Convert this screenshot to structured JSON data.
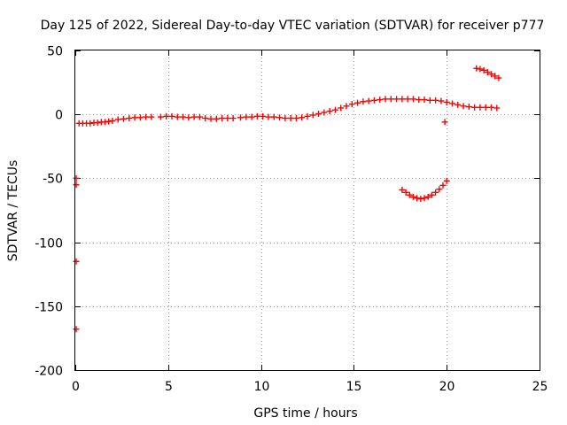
{
  "chart_data": {
    "type": "scatter",
    "title": "Day 125 of 2022, Sidereal Day-to-day VTEC variation (SDTVAR) for receiver p777",
    "xlabel": "GPS time / hours",
    "ylabel": "SDTVAR / TECUs",
    "xlim": [
      0,
      25
    ],
    "ylim": [
      -200,
      50
    ],
    "xticks": [
      0,
      5,
      10,
      15,
      20,
      25
    ],
    "yticks": [
      -200,
      -150,
      -100,
      -50,
      0,
      50
    ],
    "grid": true,
    "marker": "plus",
    "series": [
      {
        "name": "SDTVAR",
        "color": "#ff0000",
        "points": [
          [
            0.05,
            -50
          ],
          [
            0.05,
            -55
          ],
          [
            0.05,
            -115
          ],
          [
            0.05,
            -168
          ],
          [
            0.2,
            -7
          ],
          [
            0.4,
            -7
          ],
          [
            0.6,
            -7
          ],
          [
            0.8,
            -7
          ],
          [
            1.0,
            -6.5
          ],
          [
            1.2,
            -6.5
          ],
          [
            1.4,
            -6
          ],
          [
            1.6,
            -6
          ],
          [
            1.8,
            -5.5
          ],
          [
            2.0,
            -5
          ],
          [
            2.3,
            -4
          ],
          [
            2.6,
            -3.5
          ],
          [
            2.9,
            -3
          ],
          [
            3.2,
            -2.5
          ],
          [
            3.5,
            -2.5
          ],
          [
            3.8,
            -2
          ],
          [
            4.1,
            -2
          ],
          [
            4.6,
            -2
          ],
          [
            4.9,
            -1.5
          ],
          [
            5.2,
            -1.5
          ],
          [
            5.5,
            -2
          ],
          [
            5.8,
            -2
          ],
          [
            6.1,
            -2.5
          ],
          [
            6.4,
            -2
          ],
          [
            6.7,
            -2
          ],
          [
            7.0,
            -3
          ],
          [
            7.3,
            -3.5
          ],
          [
            7.6,
            -3.5
          ],
          [
            7.9,
            -3
          ],
          [
            8.2,
            -3
          ],
          [
            8.5,
            -3
          ],
          [
            8.9,
            -2.5
          ],
          [
            9.2,
            -2
          ],
          [
            9.5,
            -2
          ],
          [
            9.8,
            -1.5
          ],
          [
            10.1,
            -1.5
          ],
          [
            10.4,
            -2
          ],
          [
            10.7,
            -2
          ],
          [
            11.0,
            -2.5
          ],
          [
            11.3,
            -3
          ],
          [
            11.6,
            -3
          ],
          [
            11.9,
            -3
          ],
          [
            12.2,
            -2.5
          ],
          [
            12.5,
            -1.5
          ],
          [
            12.8,
            -0.5
          ],
          [
            13.1,
            0.5
          ],
          [
            13.4,
            1.5
          ],
          [
            13.7,
            2.5
          ],
          [
            14.0,
            3.5
          ],
          [
            14.3,
            5
          ],
          [
            14.6,
            6.5
          ],
          [
            14.9,
            8
          ],
          [
            15.2,
            9
          ],
          [
            15.5,
            10
          ],
          [
            15.8,
            10.5
          ],
          [
            16.1,
            11
          ],
          [
            16.4,
            11.5
          ],
          [
            16.7,
            12
          ],
          [
            17.0,
            12
          ],
          [
            17.3,
            12
          ],
          [
            17.6,
            12
          ],
          [
            17.9,
            12
          ],
          [
            18.2,
            12
          ],
          [
            18.5,
            11.5
          ],
          [
            18.8,
            11.5
          ],
          [
            19.1,
            11
          ],
          [
            19.4,
            11
          ],
          [
            19.7,
            10.5
          ],
          [
            20.0,
            9.5
          ],
          [
            20.3,
            8.5
          ],
          [
            20.6,
            7.5
          ],
          [
            20.9,
            6.5
          ],
          [
            21.2,
            6
          ],
          [
            21.5,
            5.5
          ],
          [
            21.8,
            5.5
          ],
          [
            22.1,
            5.5
          ],
          [
            22.4,
            5.5
          ],
          [
            22.7,
            5
          ],
          [
            19.9,
            -6
          ],
          [
            17.6,
            -59
          ],
          [
            17.8,
            -61
          ],
          [
            18.0,
            -63
          ],
          [
            18.2,
            -64.5
          ],
          [
            18.4,
            -65.5
          ],
          [
            18.6,
            -66
          ],
          [
            18.8,
            -65.5
          ],
          [
            19.0,
            -64.5
          ],
          [
            19.2,
            -63
          ],
          [
            19.4,
            -61
          ],
          [
            19.6,
            -58.5
          ],
          [
            19.8,
            -55.5
          ],
          [
            20.0,
            -52
          ],
          [
            21.6,
            36
          ],
          [
            21.8,
            35.5
          ],
          [
            22.0,
            34.5
          ],
          [
            22.2,
            33
          ],
          [
            22.4,
            31.5
          ],
          [
            22.6,
            30
          ],
          [
            22.8,
            28.5
          ]
        ]
      }
    ]
  }
}
